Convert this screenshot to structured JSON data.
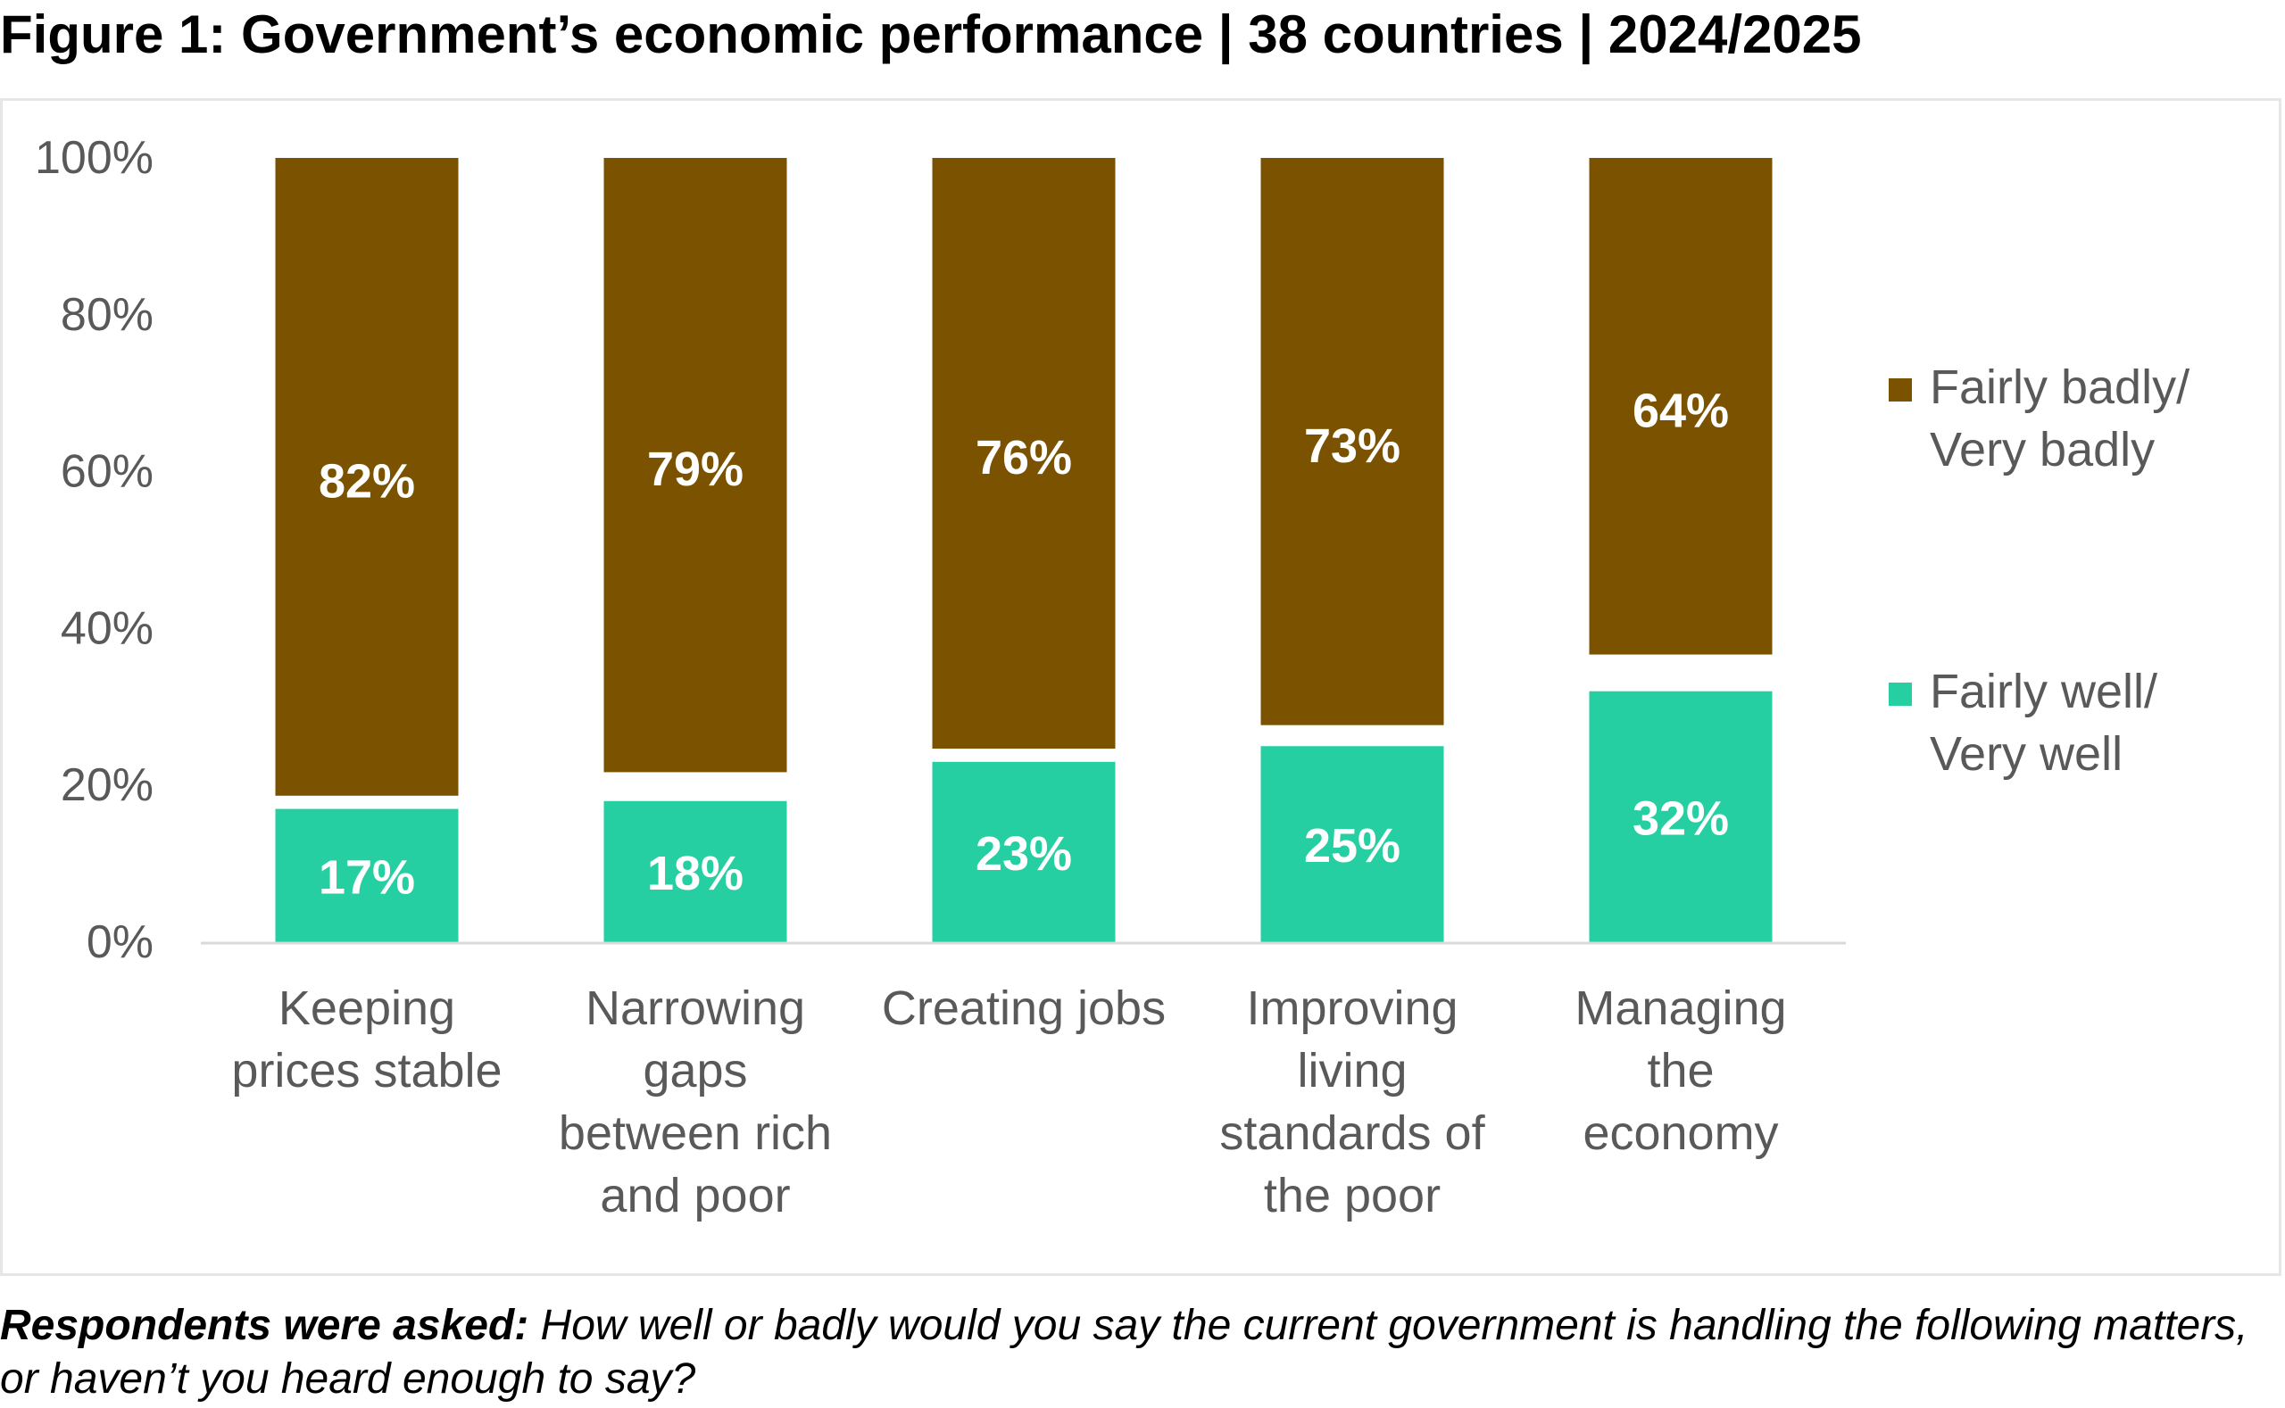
{
  "figure": {
    "title": "Figure 1: Government’s economic performance | 38 countries | 2024/2025",
    "note_lead": "Respondents were asked:",
    "note_text": "How well or badly would you say the current government is handling the following matters, or haven’t you heard enough to say?"
  },
  "chart_data": {
    "type": "bar",
    "stacked": true,
    "categories": [
      [
        "Keeping",
        "prices stable"
      ],
      [
        "Narrowing",
        "gaps",
        "between rich",
        "and poor"
      ],
      [
        "Creating jobs"
      ],
      [
        "Improving",
        "living",
        "standards of",
        "the poor"
      ],
      [
        "Managing",
        "the",
        "economy"
      ]
    ],
    "series": [
      {
        "name": "Fairly well/ Very well",
        "legend_lines": [
          "Fairly well/",
          "Very well"
        ],
        "color": "#26cfa1",
        "values": [
          17,
          18,
          23,
          25,
          32
        ],
        "labels": [
          "17%",
          "18%",
          "23%",
          "25%",
          "32%"
        ]
      },
      {
        "name": "Fairly badly/ Very badly",
        "legend_lines": [
          "Fairly badly/",
          "Very badly"
        ],
        "color": "#7b5300",
        "values": [
          82,
          79,
          76,
          73,
          64
        ],
        "labels": [
          "82%",
          "79%",
          "76%",
          "73%",
          "64%"
        ]
      }
    ],
    "ylim": [
      0,
      100
    ],
    "yticks": [
      "0%",
      "20%",
      "40%",
      "60%",
      "80%",
      "100%"
    ],
    "xlabel": "",
    "ylabel": "",
    "legend": "right",
    "grid": false
  }
}
